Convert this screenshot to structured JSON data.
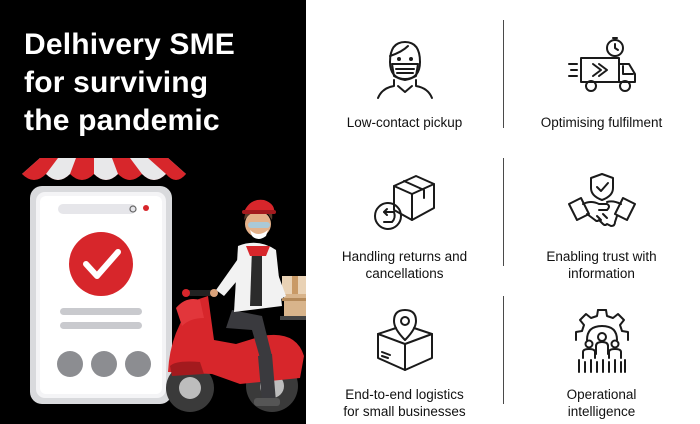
{
  "headline": {
    "line1": "Delhivery SME",
    "line2": "for surviving",
    "line3": "the pandemic"
  },
  "colors": {
    "accent_red": "#d7262b",
    "panel_black": "#000000",
    "icon_stroke": "#1a1a1a"
  },
  "features": [
    {
      "label": "Low-contact pickup",
      "icon": "masked-face-icon"
    },
    {
      "label": "Optimising fulfilment",
      "icon": "fast-truck-icon"
    },
    {
      "label": "Handling returns and\ncancellations",
      "icon": "return-box-icon"
    },
    {
      "label": "Enabling trust with\ninformation",
      "icon": "handshake-shield-icon"
    },
    {
      "label": "End-to-end logistics\nfor small businesses",
      "icon": "box-location-icon"
    },
    {
      "label": "Operational\nintelligence",
      "icon": "gear-people-icon"
    }
  ]
}
